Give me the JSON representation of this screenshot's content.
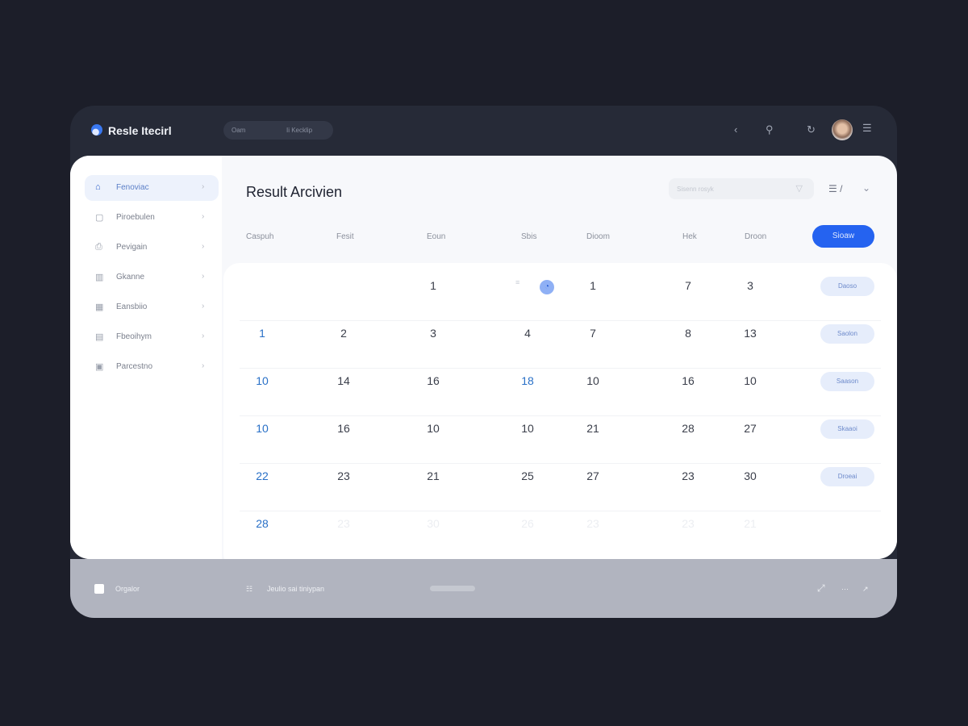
{
  "app": {
    "title": "Resle Itecirl",
    "search_left": "Oam",
    "search_right": "Ii Kecklip"
  },
  "topbar": {
    "icons": [
      "back-icon",
      "search-icon",
      "refresh-icon",
      "avatar",
      "menu-icon"
    ]
  },
  "sidebar": {
    "items": [
      {
        "label": "Fenoviac",
        "icon": "home-icon",
        "active": true
      },
      {
        "label": "Piroebulen",
        "icon": "document-icon"
      },
      {
        "label": "Pevigain",
        "icon": "printer-icon"
      },
      {
        "label": "Gkanne",
        "icon": "building-icon"
      },
      {
        "label": "Eansbiio",
        "icon": "grid-icon"
      },
      {
        "label": "Fbeoihym",
        "icon": "file-icon"
      },
      {
        "label": "Parcestno",
        "icon": "image-icon"
      }
    ]
  },
  "main": {
    "title": "Result Arcivien",
    "filter_placeholder": "Sisenn rosyk",
    "view_label": "/",
    "primary_button": "Sioaw",
    "columns": [
      "Caspuh",
      "Fesit",
      "Eoun",
      "Sbis",
      "Dioom",
      "Hek",
      "Droon"
    ],
    "rows": [
      {
        "cells": [
          "",
          "",
          "1",
          "",
          "1",
          "7",
          "3"
        ],
        "action": "Daoso"
      },
      {
        "cells": [
          "1",
          "2",
          "3",
          "4",
          "7",
          "8",
          "13"
        ],
        "action": "Saolon"
      },
      {
        "cells": [
          "10",
          "14",
          "16",
          "18",
          "10",
          "16",
          "10"
        ],
        "action": "Saason"
      },
      {
        "cells": [
          "10",
          "16",
          "10",
          "10",
          "21",
          "28",
          "27"
        ],
        "action": "Skaaoi"
      },
      {
        "cells": [
          "22",
          "23",
          "21",
          "25",
          "27",
          "23",
          "30"
        ],
        "action": "Droeai"
      },
      {
        "cells": [
          "28",
          "23",
          "30",
          "26",
          "23",
          "23",
          "21"
        ],
        "action": ""
      }
    ]
  },
  "footer": {
    "left": "Orgalor",
    "middle": "Jeulio sai tiniypan"
  },
  "colors": {
    "accent": "#2563f0",
    "link": "#2970c7"
  }
}
